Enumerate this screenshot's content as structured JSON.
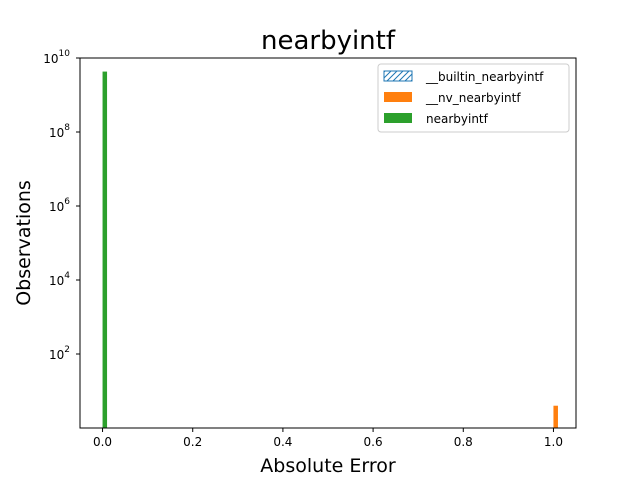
{
  "chart_data": {
    "type": "bar",
    "title": "nearbyintf",
    "xlabel": "Absolute Error",
    "ylabel": "Observations",
    "xlim": [
      -0.05,
      1.05
    ],
    "ylim": [
      1,
      10000000000
    ],
    "yscale": "log",
    "grid": false,
    "legend_position": "top-right",
    "x_ticks": [
      {
        "value": 0.0,
        "label": "0.0"
      },
      {
        "value": 0.2,
        "label": "0.2"
      },
      {
        "value": 0.4,
        "label": "0.4"
      },
      {
        "value": 0.6,
        "label": "0.6"
      },
      {
        "value": 0.8,
        "label": "0.8"
      },
      {
        "value": 1.0,
        "label": "1.0"
      }
    ],
    "y_ticks": [
      {
        "value": 100,
        "base": "10",
        "exp": "2"
      },
      {
        "value": 10000,
        "base": "10",
        "exp": "4"
      },
      {
        "value": 1000000,
        "base": "10",
        "exp": "6"
      },
      {
        "value": 100000000,
        "base": "10",
        "exp": "8"
      },
      {
        "value": 10000000000,
        "base": "10",
        "exp": "10"
      }
    ],
    "series": [
      {
        "name": "__builtin_nearbyintf",
        "color": "#1f77b4",
        "style": "hatched-outline",
        "bins": []
      },
      {
        "name": "__nv_nearbyintf",
        "color": "#ff7f0e",
        "style": "filled",
        "bins": [
          {
            "x0": 1.0,
            "x1": 1.01,
            "value": 4
          }
        ]
      },
      {
        "name": "nearbyintf",
        "color": "#2ca02c",
        "style": "filled",
        "bins": [
          {
            "x0": 0.0,
            "x1": 0.01,
            "value": 4294967296
          }
        ]
      }
    ]
  }
}
